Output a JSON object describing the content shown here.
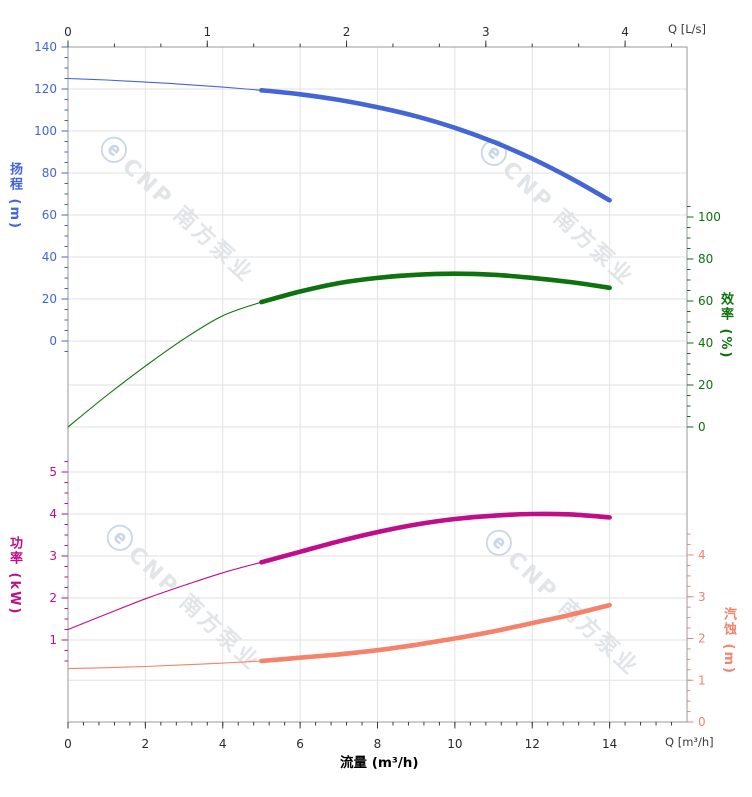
{
  "watermark": {
    "logo": "ⓔ",
    "text": "CNP 南方泵业"
  },
  "chart_data": {
    "type": "line",
    "title": "",
    "x": [
      0,
      1,
      2,
      3,
      4,
      5,
      6,
      7,
      8,
      9,
      10,
      11,
      12,
      13,
      14
    ],
    "axes": {
      "flow_bottom": {
        "label": "流量 (m³/h)",
        "corner_label": "Q [m³/h]",
        "ticks": [
          0,
          2,
          4,
          6,
          8,
          10,
          12,
          14
        ],
        "minor_step": 0.4,
        "max": 16,
        "color": "#3a3a3a"
      },
      "flow_top": {
        "corner_label": "Q [L/s]",
        "ticks": [
          0,
          1,
          2,
          3,
          4
        ],
        "minor_step": 0.3333,
        "color": "#3a3a3a"
      },
      "head": {
        "title": "扬程 (m)",
        "ticks": [
          0,
          20,
          40,
          60,
          80,
          100,
          120,
          140
        ],
        "minor_step": 5,
        "minor_min": -5,
        "minor_max": 140,
        "ylim": [
          0,
          140
        ],
        "color": "#4365d6"
      },
      "eff": {
        "title": "效率 (%)",
        "ticks": [
          0,
          20,
          40,
          60,
          80,
          100
        ],
        "minor_step": 5,
        "minor_min": 0,
        "minor_max": 105,
        "ylim": [
          0,
          100
        ],
        "color": "#0e720e"
      },
      "power": {
        "title": "功率 (kW)",
        "ticks": [
          1,
          2,
          3,
          4,
          5
        ],
        "minor_step": 0.25,
        "minor_min": 0.5,
        "minor_max": 5.25,
        "ylim": [
          0,
          5
        ],
        "color": "#c00d8a"
      },
      "npsh": {
        "title": "汽蚀 (m)",
        "ticks": [
          0,
          1,
          2,
          3,
          4
        ],
        "minor_step": 0.25,
        "minor_min": 0,
        "minor_max": 4.5,
        "ylim": [
          0,
          4
        ],
        "color": "#f5826b"
      }
    },
    "series": [
      {
        "name": "扬程",
        "axis": "head",
        "thick_from": 5,
        "values": [
          125,
          124.3,
          123.3,
          122.2,
          120.9,
          119.4,
          117.5,
          114.8,
          111.3,
          107,
          101.5,
          94.8,
          86.8,
          77.5,
          67
        ]
      },
      {
        "name": "效率",
        "axis": "eff",
        "thick_from": 5,
        "values": [
          0,
          15,
          29,
          42,
          53,
          59.5,
          64.5,
          68.5,
          71,
          72.5,
          73,
          72.5,
          71,
          69,
          66.3
        ]
      },
      {
        "name": "功率",
        "axis": "power",
        "thick_from": 5,
        "values": [
          1.25,
          1.62,
          1.98,
          2.3,
          2.6,
          2.85,
          3.1,
          3.35,
          3.57,
          3.75,
          3.88,
          3.96,
          4.0,
          3.99,
          3.92
        ]
      },
      {
        "name": "汽蚀",
        "axis": "npsh",
        "thick_from": 5,
        "values": [
          1.28,
          1.3,
          1.33,
          1.37,
          1.41,
          1.46,
          1.54,
          1.62,
          1.72,
          1.85,
          2.0,
          2.17,
          2.37,
          2.57,
          2.8
        ]
      }
    ],
    "grid": "on",
    "legend": "none"
  },
  "colors": {
    "grid": "#e2e2e2",
    "border": "#a9a9a9",
    "background": "#ffffff"
  }
}
